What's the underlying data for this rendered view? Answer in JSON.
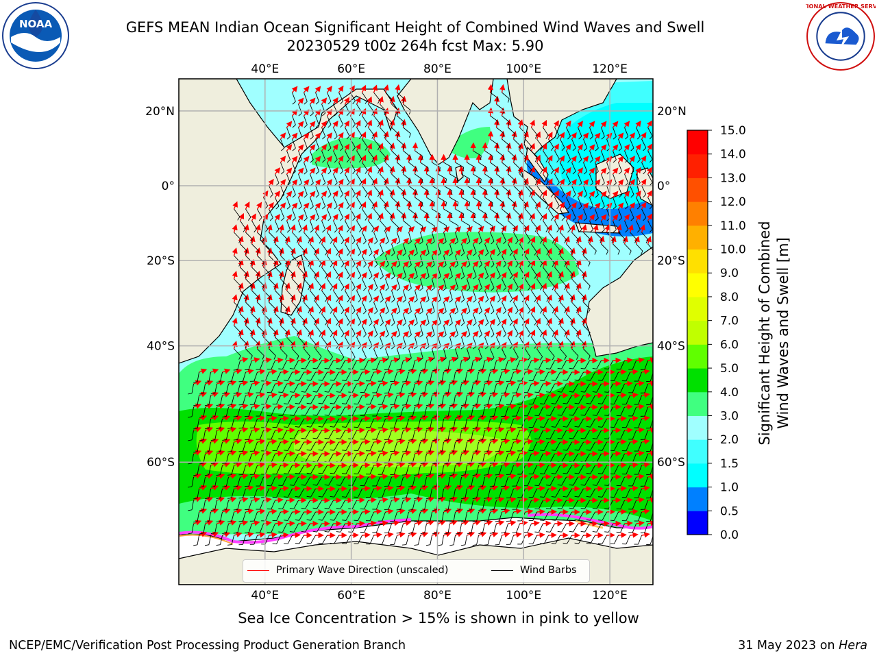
{
  "title": {
    "line1": "GEFS MEAN Indian Ocean Significant Height of Combined Wind Waves and Swell",
    "line2": "20230529 t00z 264h fcst   Max: 5.90"
  },
  "logos": {
    "left": {
      "icon": "noaa-logo",
      "text": "NOAA"
    },
    "right": {
      "icon": "nws-logo",
      "text": "NATIONAL WEATHER SERVICE"
    }
  },
  "map": {
    "lon_range": [
      20,
      130
    ],
    "lat_range": [
      -73,
      28
    ],
    "lon_ticks": [
      "40°E",
      "60°E",
      "80°E",
      "100°E",
      "120°E"
    ],
    "lat_ticks_left": [
      "20°N",
      "0°",
      "20°S",
      "40°S",
      "60°S"
    ],
    "lat_ticks_right": [
      "20°N",
      "0°",
      "20°S",
      "40°S",
      "60°S"
    ],
    "land_color": "#efeedd",
    "grid": true
  },
  "legend": {
    "wave_direction": "Primary Wave Direction (unscaled)",
    "wind_barbs": "Wind Barbs",
    "wave_color": "#ff0000",
    "barb_color": "#000000"
  },
  "colorbar": {
    "label_line1": "Significant Height of Combined",
    "label_line2": "Wind Waves and Swell [m]",
    "levels": [
      "0.0",
      "0.5",
      "1.0",
      "1.5",
      "2.0",
      "3.0",
      "4.0",
      "5.0",
      "6.0",
      "7.0",
      "8.0",
      "9.0",
      "10.0",
      "11.0",
      "12.0",
      "13.0",
      "14.0",
      "15.0"
    ],
    "colors": [
      "#0000ff",
      "#0080ff",
      "#00ffff",
      "#40ffff",
      "#a0ffff",
      "#40ff80",
      "#00e000",
      "#60ff00",
      "#c0ff00",
      "#e0ff00",
      "#ffff00",
      "#ffe000",
      "#ffb000",
      "#ff8000",
      "#ff5000",
      "#ff2000",
      "#ff0000"
    ]
  },
  "note": "Sea Ice Concentration > 15% is shown in pink to yellow",
  "footer": {
    "left": "NCEP/EMC/Verification Post Processing Product Generation Branch",
    "right_date": "31 May 2023 on",
    "right_host": "Hera"
  }
}
